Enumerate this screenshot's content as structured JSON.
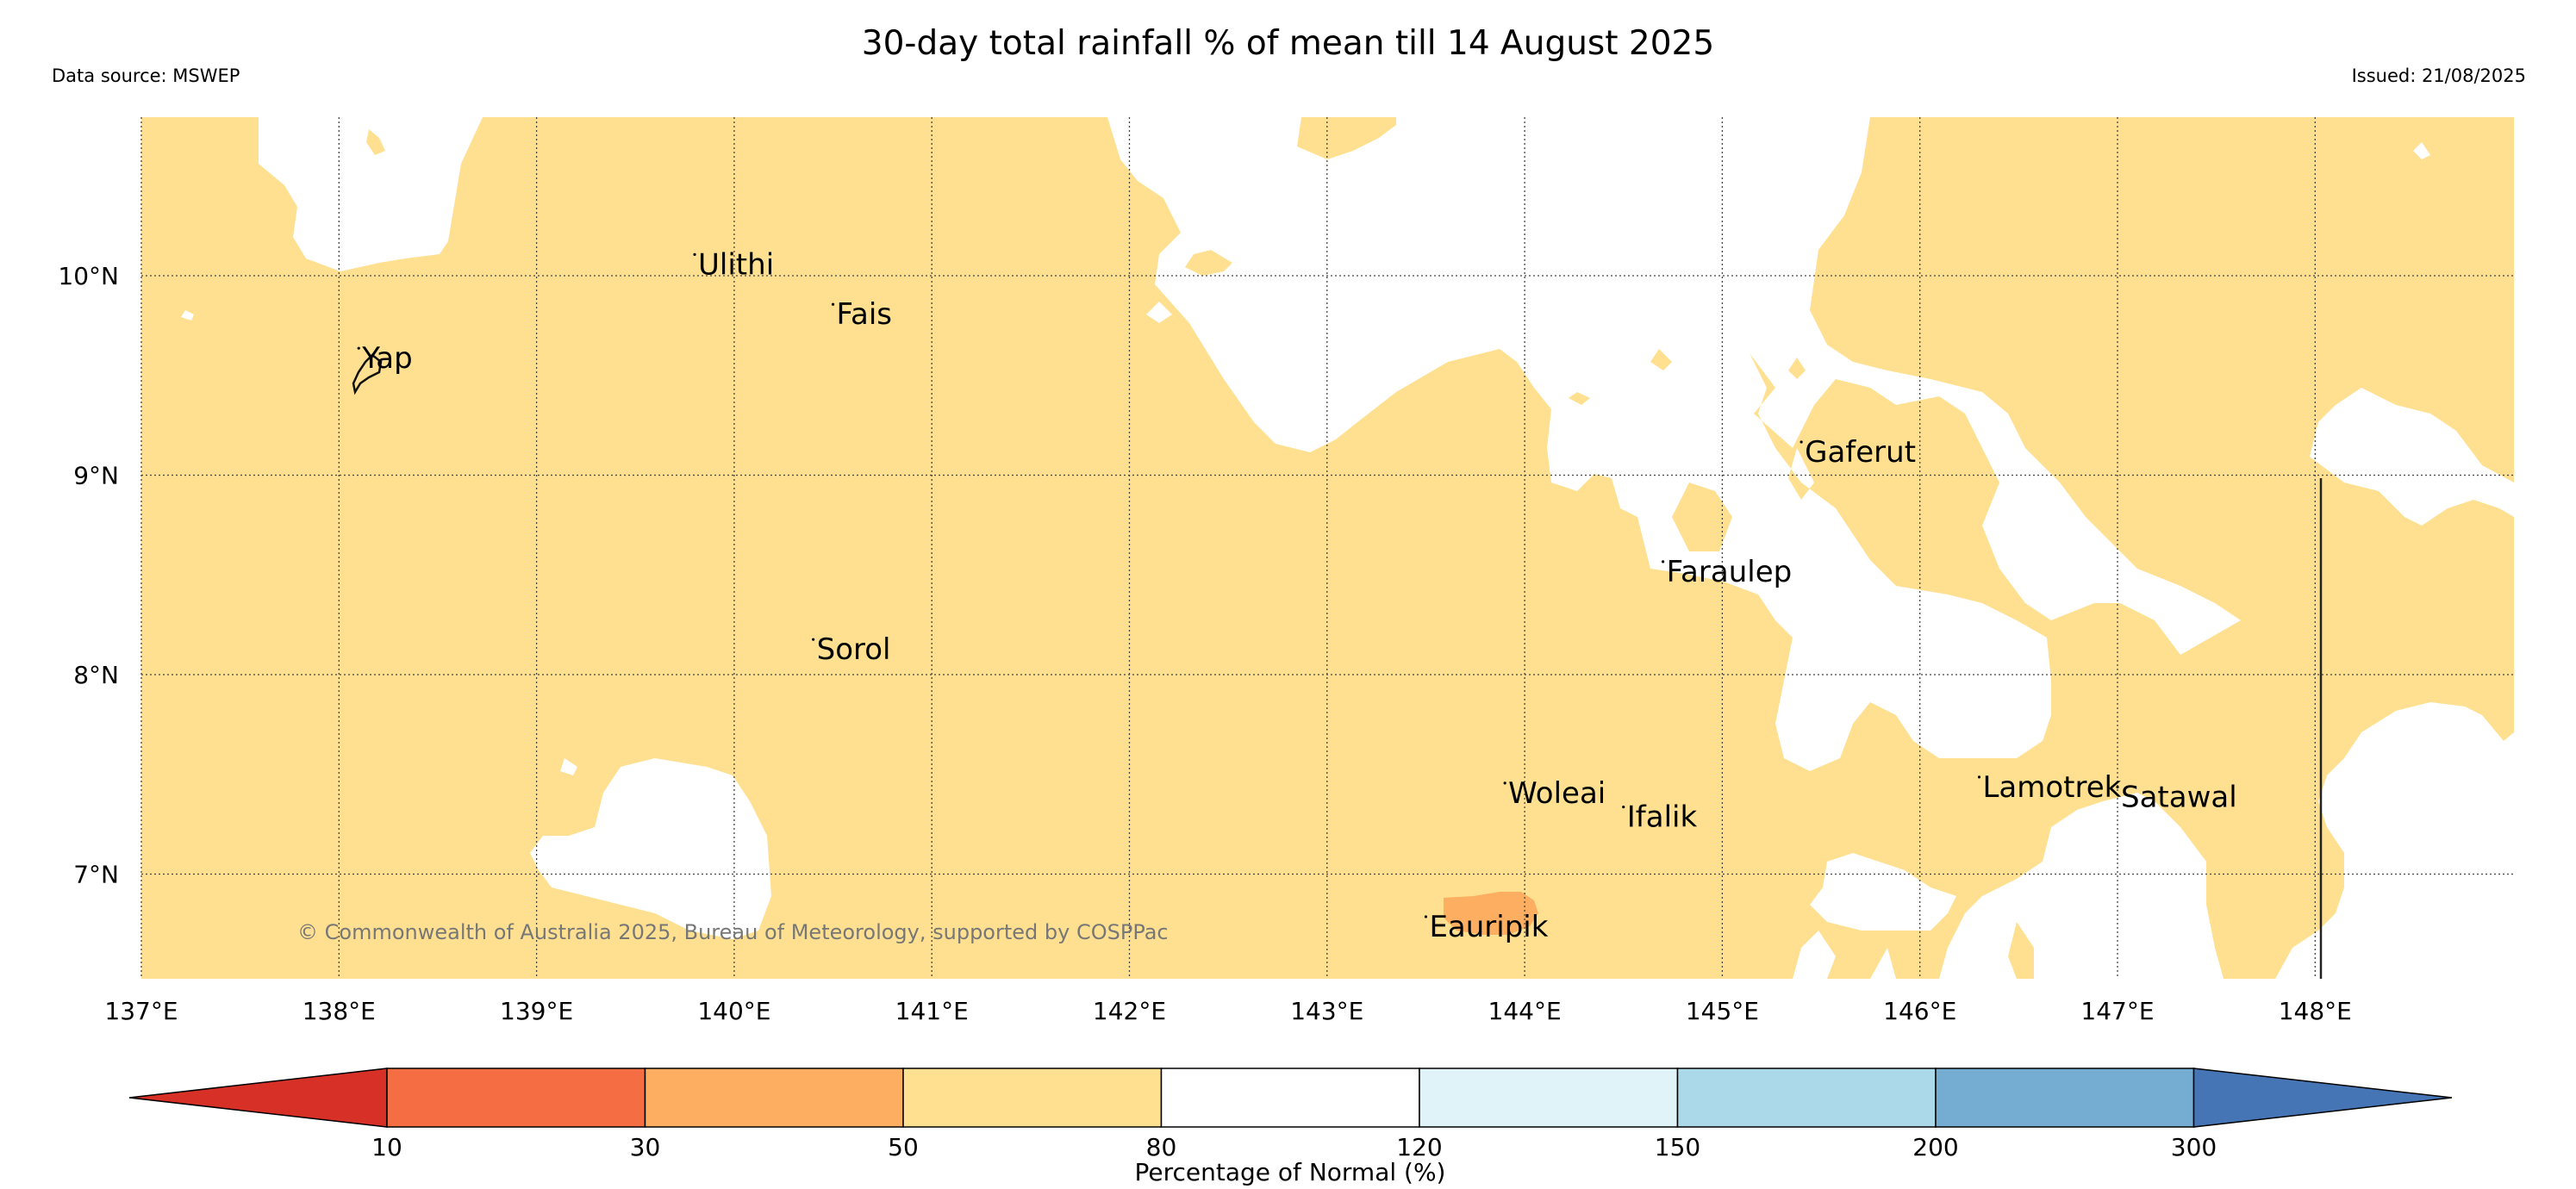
{
  "title": "30-day total rainfall % of mean till 14 August 2025",
  "data_source": "Data source: MSWEP",
  "issued": "Issued: 21/08/2025",
  "copyright": "© Commonwealth of Australia 2025, Bureau of Meteorology, supported by COSPPac",
  "lon_labels": [
    "137°E",
    "138°E",
    "139°E",
    "140°E",
    "141°E",
    "142°E",
    "143°E",
    "144°E",
    "145°E",
    "146°E",
    "147°E",
    "148°E"
  ],
  "lat_labels": [
    "10°N",
    "9°N",
    "8°N",
    "7°N"
  ],
  "places": [
    {
      "name": "Ulithi",
      "lon": 139.8,
      "lat": 10.02
    },
    {
      "name": "Yap",
      "lon": 138.1,
      "lat": 9.55
    },
    {
      "name": "Fais",
      "lon": 140.5,
      "lat": 9.77
    },
    {
      "name": "Gaferut",
      "lon": 145.4,
      "lat": 9.08
    },
    {
      "name": "Faraulep",
      "lon": 144.7,
      "lat": 8.48
    },
    {
      "name": "Sorol",
      "lon": 140.4,
      "lat": 8.09
    },
    {
      "name": "Woleai",
      "lon": 143.9,
      "lat": 7.37
    },
    {
      "name": "Ifalik",
      "lon": 144.5,
      "lat": 7.25
    },
    {
      "name": "Lamotrek",
      "lon": 146.3,
      "lat": 7.4
    },
    {
      "name": "Satawal",
      "lon": 147.0,
      "lat": 7.35
    },
    {
      "name": "Eauripik",
      "lon": 143.5,
      "lat": 6.7
    }
  ],
  "colorbar": {
    "label": "Percentage of Normal (%)",
    "ticks": [
      "10",
      "30",
      "50",
      "80",
      "120",
      "150",
      "200",
      "300"
    ],
    "colors": [
      "#d73027",
      "#f46d43",
      "#fdae61",
      "#fee090",
      "#ffffff",
      "#e0f3f8",
      "#abd9e9",
      "#74add1",
      "#4575b4"
    ]
  },
  "map_colors": {
    "band_50_80": "#fee090",
    "band_30_50": "#fdae61"
  }
}
